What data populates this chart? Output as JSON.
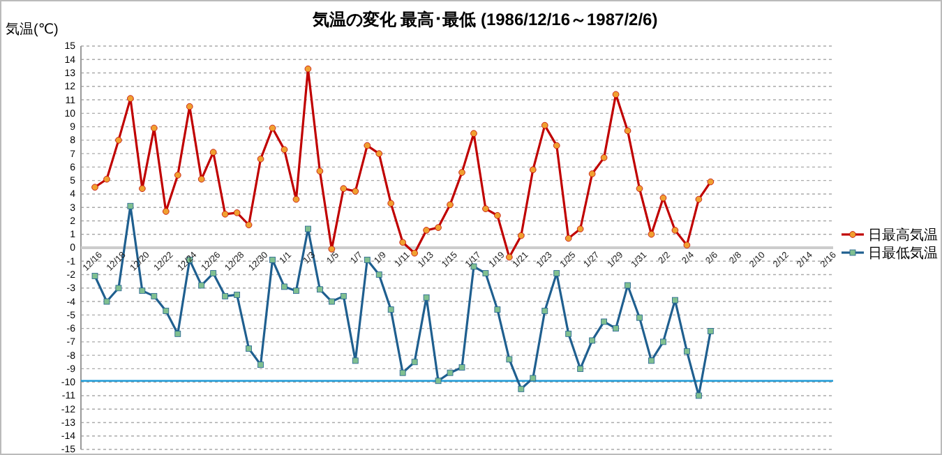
{
  "chart_data": {
    "type": "line",
    "title": "気温の変化  最高･最低  (1986/12/16～1987/2/6)",
    "ylabel": "気温(℃)",
    "categories": [
      "12/16",
      null,
      "12/18",
      null,
      "12/20",
      null,
      "12/22",
      null,
      "12/24",
      null,
      "12/26",
      null,
      "12/28",
      null,
      "12/30",
      null,
      "1/1",
      null,
      "1/3",
      null,
      "1/5",
      null,
      "1/7",
      null,
      "1/9",
      null,
      "1/11",
      null,
      "1/13",
      null,
      "1/15",
      null,
      "1/17",
      null,
      "1/19",
      null,
      "1/21",
      null,
      "1/23",
      null,
      "1/25",
      null,
      "1/27",
      null,
      "1/29",
      null,
      "1/31",
      null,
      "2/2",
      null,
      "2/4",
      null,
      "2/6",
      null,
      "2/8",
      null,
      "2/10",
      null,
      "2/12",
      null,
      "2/14",
      null,
      "2/16"
    ],
    "series": [
      {
        "name": "日最高気温",
        "color": "#c00000",
        "marker": "circle",
        "values": [
          4.5,
          5.1,
          8.0,
          11.1,
          4.4,
          8.9,
          2.7,
          5.4,
          10.5,
          5.1,
          7.1,
          2.5,
          2.6,
          1.7,
          6.6,
          8.9,
          7.3,
          3.6,
          13.3,
          5.7,
          -0.1,
          4.4,
          4.2,
          7.6,
          7.0,
          3.3,
          0.4,
          -0.4,
          1.3,
          1.5,
          3.2,
          5.6,
          8.5,
          2.9,
          2.4,
          -0.7,
          0.9,
          5.8,
          9.1,
          7.6,
          0.7,
          1.4,
          5.5,
          6.7,
          11.4,
          8.7,
          4.4,
          1.0,
          3.7,
          1.3,
          0.2,
          3.6,
          4.9,
          null,
          null,
          null,
          null,
          null,
          null,
          null,
          null,
          null,
          null
        ]
      },
      {
        "name": "日最低気温",
        "color": "#1f5f8f",
        "marker": "square",
        "values": [
          -2.1,
          -4.0,
          -3.0,
          3.1,
          -3.2,
          -3.6,
          -4.7,
          -6.4,
          -0.9,
          -2.8,
          -1.9,
          -3.6,
          -3.5,
          -7.5,
          -8.7,
          -0.9,
          -2.9,
          -3.2,
          1.4,
          -3.1,
          -4.0,
          -3.6,
          -8.4,
          -0.9,
          -2.0,
          -4.6,
          -9.3,
          -8.5,
          -3.7,
          -9.9,
          -9.3,
          -8.9,
          -1.4,
          -1.9,
          -4.6,
          -8.3,
          -10.5,
          -9.7,
          -4.7,
          -1.9,
          -6.4,
          -9.0,
          -6.9,
          -5.5,
          -6.0,
          -2.8,
          -5.2,
          -8.4,
          -7.0,
          -3.9,
          -7.7,
          -11.0,
          -6.2,
          null,
          null,
          null,
          null,
          null,
          null,
          null,
          null,
          null,
          null
        ]
      }
    ],
    "ylim": [
      -15,
      15
    ],
    "yticks": [
      -15,
      -14,
      -13,
      -12,
      -11,
      -10,
      -9,
      -8,
      -7,
      -6,
      -5,
      -4,
      -3,
      -2,
      -1,
      0,
      1,
      2,
      3,
      4,
      5,
      6,
      7,
      8,
      9,
      10,
      11,
      12,
      13,
      14,
      15
    ],
    "grid": "y",
    "legend": "right",
    "line_style": "solid",
    "ref_lines": [
      {
        "axis": "y",
        "value": -9.9,
        "color": "#1f9bd7"
      }
    ]
  }
}
